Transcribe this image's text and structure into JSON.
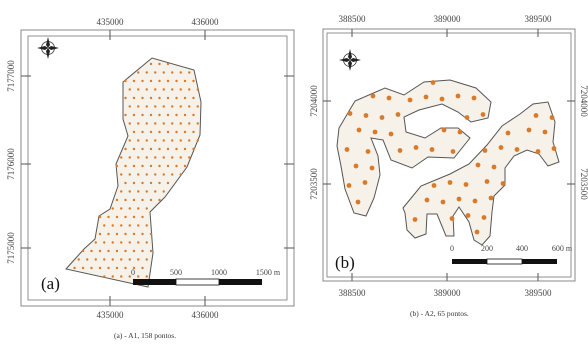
{
  "panel_a": {
    "label": "(a)",
    "caption": "(a) - A1, 158 pontos.",
    "x_ticks_top": [
      "435000",
      "436000"
    ],
    "x_ticks_bottom": [
      "435000",
      "436000"
    ],
    "y_ticks_left": [
      "7177000",
      "7176000",
      "7175000"
    ],
    "y_ticks_right": [
      "7177000",
      "7176000",
      "7175000"
    ],
    "scale_labels": [
      "0",
      "500",
      "1000",
      "1500 m"
    ],
    "point_color": "#d97a2b"
  },
  "panel_b": {
    "label": "(b)",
    "caption": "(b) - A2, 65 pontos.",
    "x_ticks_top": [
      "388500",
      "389000",
      "389500"
    ],
    "x_ticks_bottom": [
      "388500",
      "389000",
      "389500"
    ],
    "y_ticks_left": [
      "7204000",
      "7203500"
    ],
    "y_ticks_right": [
      "7204000",
      "7203500"
    ],
    "scale_labels": [
      "0",
      "200",
      "400",
      "600 m"
    ],
    "point_color": "#d97a2b"
  }
}
